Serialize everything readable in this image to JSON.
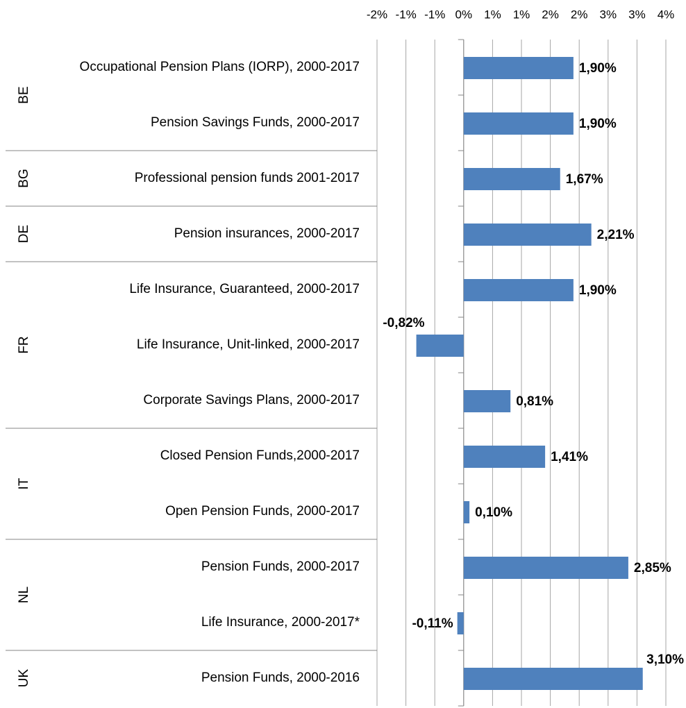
{
  "chart_data": {
    "type": "bar",
    "orientation": "horizontal",
    "color": "#4f81bd",
    "xlim": [
      -1.5,
      3.5
    ],
    "xticks": [
      {
        "value": -1.5,
        "label": "-2%"
      },
      {
        "value": -1,
        "label": "-1%"
      },
      {
        "value": -0.5,
        "label": "-1%"
      },
      {
        "value": 0,
        "label": "0%"
      },
      {
        "value": 0.5,
        "label": "1%"
      },
      {
        "value": 1,
        "label": "1%"
      },
      {
        "value": 1.5,
        "label": "2%"
      },
      {
        "value": 2,
        "label": "2%"
      },
      {
        "value": 2.5,
        "label": "3%"
      },
      {
        "value": 3,
        "label": "3%"
      },
      {
        "value": 3.5,
        "label": "4%"
      }
    ],
    "grid": true,
    "groups": [
      {
        "name": "BE",
        "categories": [
          "Occupational Pension Plans (IORP), 2000-2017",
          "Pension Savings Funds, 2000-2017"
        ],
        "values": [
          1.9,
          1.9
        ],
        "value_labels": [
          "1,90%",
          "1,90%"
        ]
      },
      {
        "name": "BG",
        "categories": [
          "Professional pension funds 2001-2017"
        ],
        "values": [
          1.67
        ],
        "value_labels": [
          "1,67%"
        ]
      },
      {
        "name": "DE",
        "categories": [
          "Pension insurances, 2000-2017"
        ],
        "values": [
          2.21
        ],
        "value_labels": [
          "2,21%"
        ]
      },
      {
        "name": "FR",
        "categories": [
          "Life Insurance, Guaranteed, 2000-2017",
          "Life Insurance, Unit-linked, 2000-2017",
          "Corporate Savings Plans, 2000-2017"
        ],
        "values": [
          1.9,
          -0.82,
          0.81
        ],
        "value_labels": [
          "1,90%",
          "-0,82%",
          "0,81%"
        ]
      },
      {
        "name": "IT",
        "categories": [
          "Closed Pension Funds,2000-2017",
          "Open Pension Funds, 2000-2017"
        ],
        "values": [
          1.41,
          0.1
        ],
        "value_labels": [
          "1,41%",
          "0,10%"
        ]
      },
      {
        "name": "NL",
        "categories": [
          "Pension Funds, 2000-2017",
          "Life Insurance, 2000-2017*"
        ],
        "values": [
          2.85,
          -0.11
        ],
        "value_labels": [
          "2,85%",
          "-0,11%"
        ]
      },
      {
        "name": "UK",
        "categories": [
          "Pension Funds, 2000-2016"
        ],
        "values": [
          3.1
        ],
        "value_labels": [
          "3,10%"
        ]
      }
    ]
  }
}
